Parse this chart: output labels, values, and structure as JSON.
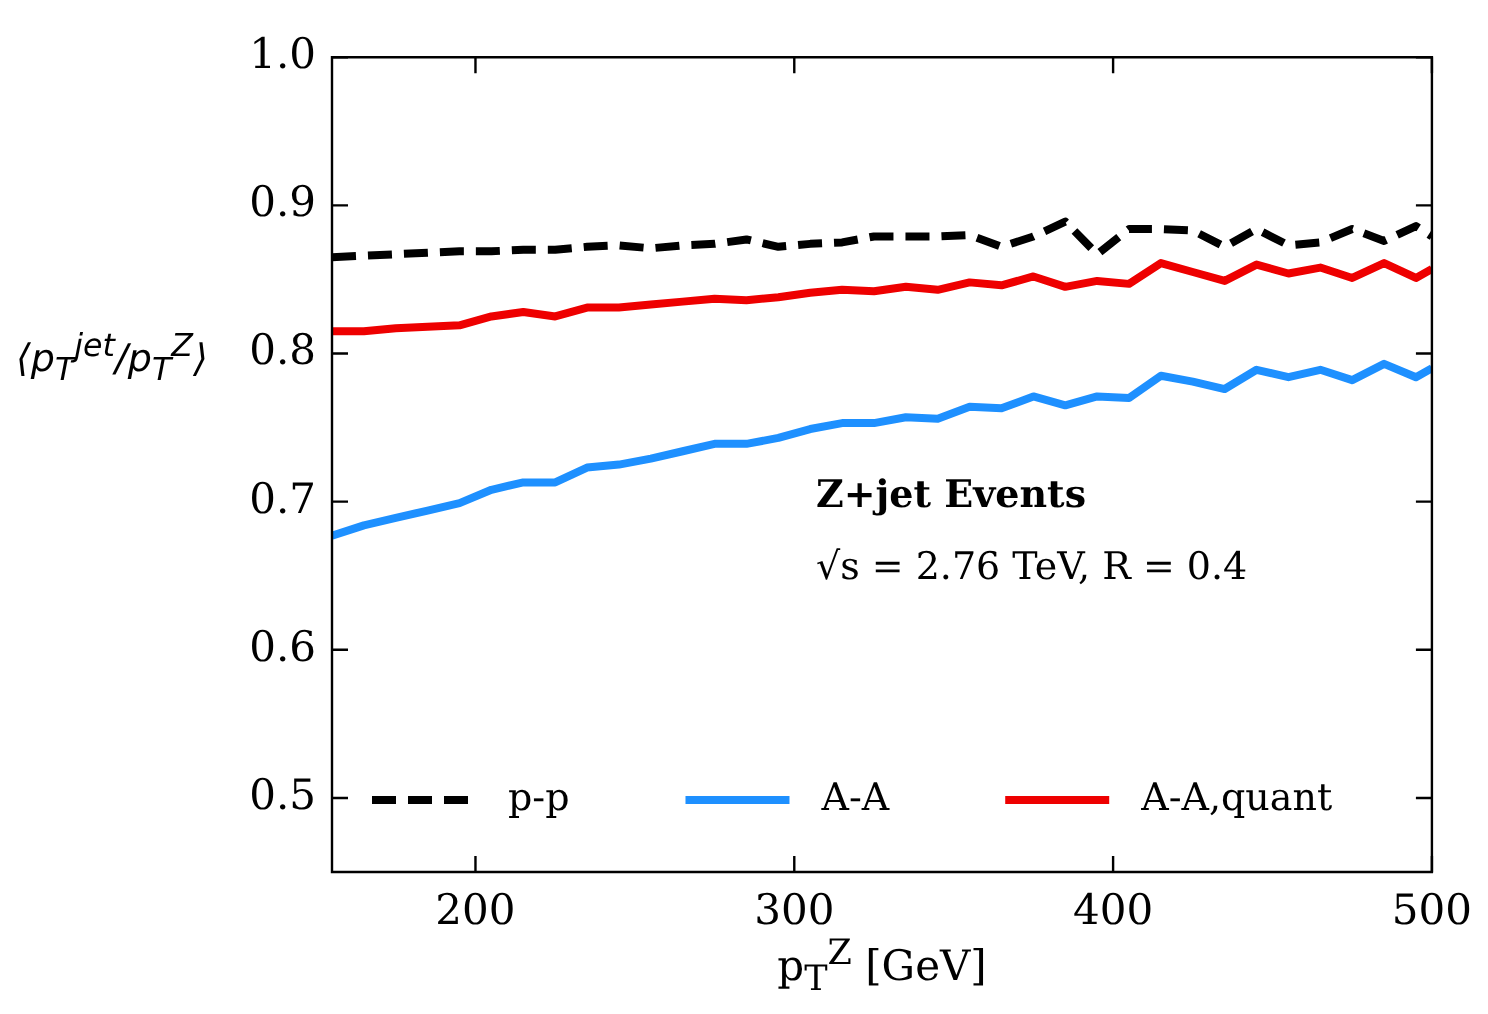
{
  "chart_data": {
    "type": "line",
    "xlabel": "p$_{T}$$^{Z}$ [GeV]",
    "ylabel": "⟨p$_{T}$$^{jet}$/p$_{T}$$^{Z}$⟩",
    "annotations": [
      "Z+jet Events",
      "√s = 2.76 TeV, R = 0.4"
    ],
    "x": [
      155,
      165,
      175,
      185,
      195,
      205,
      215,
      225,
      235,
      245,
      255,
      265,
      275,
      285,
      295,
      305,
      315,
      325,
      335,
      345,
      355,
      365,
      375,
      385,
      395,
      405,
      415,
      425,
      435,
      445,
      455,
      465,
      475,
      485,
      495,
      500
    ],
    "series": [
      {
        "name": "p-p",
        "color": "#000000",
        "line_style": "dashed",
        "values": [
          0.865,
          0.866,
          0.867,
          0.868,
          0.869,
          0.869,
          0.87,
          0.87,
          0.872,
          0.873,
          0.871,
          0.873,
          0.874,
          0.877,
          0.872,
          0.874,
          0.875,
          0.879,
          0.879,
          0.879,
          0.88,
          0.872,
          0.879,
          0.889,
          0.867,
          0.884,
          0.884,
          0.883,
          0.872,
          0.884,
          0.873,
          0.875,
          0.884,
          0.876,
          0.886,
          0.879
        ]
      },
      {
        "name": "A-A",
        "color": "#1e90ff",
        "line_style": "solid",
        "values": [
          0.677,
          0.684,
          0.689,
          0.694,
          0.699,
          0.708,
          0.713,
          0.713,
          0.723,
          0.725,
          0.729,
          0.734,
          0.739,
          0.739,
          0.743,
          0.749,
          0.753,
          0.753,
          0.757,
          0.756,
          0.764,
          0.763,
          0.771,
          0.765,
          0.771,
          0.77,
          0.785,
          0.781,
          0.776,
          0.789,
          0.784,
          0.789,
          0.782,
          0.793,
          0.784,
          0.79
        ]
      },
      {
        "name": "A-A,quant",
        "color": "#ee0000",
        "line_style": "solid",
        "values": [
          0.815,
          0.815,
          0.817,
          0.818,
          0.819,
          0.825,
          0.828,
          0.825,
          0.831,
          0.831,
          0.833,
          0.835,
          0.837,
          0.836,
          0.838,
          0.841,
          0.843,
          0.842,
          0.845,
          0.843,
          0.848,
          0.846,
          0.852,
          0.845,
          0.849,
          0.847,
          0.861,
          0.855,
          0.849,
          0.86,
          0.854,
          0.858,
          0.851,
          0.861,
          0.851,
          0.857
        ]
      }
    ],
    "xlim": [
      155,
      500
    ],
    "xticks": [
      200,
      300,
      400,
      500
    ],
    "ylim": [
      0.45,
      1.0
    ],
    "yticks": [
      0.5,
      0.6,
      0.7,
      0.8,
      0.9,
      {
        "value": 1,
        "label": "1.0"
      }
    ],
    "grid": false,
    "legend": "bottom",
    "marker": "none"
  }
}
